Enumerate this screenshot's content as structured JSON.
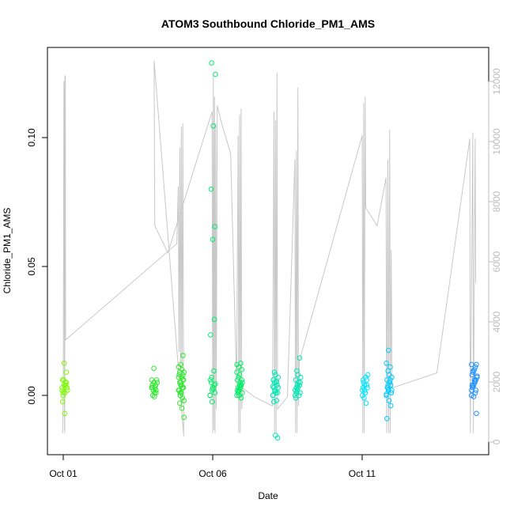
{
  "chart_data": {
    "type": "scatter",
    "title": "ATOM3 Southbound Chloride_PM1_AMS",
    "xlabel": "Date",
    "ylabel": "Chloride_PM1_AMS",
    "xlim_days": [
      0.0,
      14.0
    ],
    "ylim": [
      -0.02,
      0.13
    ],
    "x_ticks": [
      {
        "label": "Oct 01",
        "day": 0.0
      },
      {
        "label": "Oct 06",
        "day": 5.0
      },
      {
        "label": "Oct 11",
        "day": 10.0
      }
    ],
    "y_ticks": [
      {
        "label": "0.00",
        "value": 0.0
      },
      {
        "label": "0.05",
        "value": 0.05
      },
      {
        "label": "0.10",
        "value": 0.1
      }
    ],
    "right_axis": {
      "ylim": [
        0,
        13000
      ],
      "ticks": [
        {
          "label": "0",
          "value": 0
        },
        {
          "label": "2000",
          "value": 2000
        },
        {
          "label": "4000",
          "value": 4000
        },
        {
          "label": "6000",
          "value": 6000
        },
        {
          "label": "8000",
          "value": 8000
        },
        {
          "label": "10000",
          "value": 10000
        },
        {
          "label": "12000",
          "value": 12000
        }
      ]
    },
    "grid": false,
    "colors": {
      "line": "#c8c8c8",
      "right_axis": "#bdbdbd",
      "point_groups": [
        "#7cfc00",
        "#2ee82e",
        "#00ee66",
        "#00e8b4",
        "#00e5ff",
        "#00ccff",
        "#1e90ff"
      ]
    },
    "clusters": [
      {
        "day": 0.05,
        "color_index": 0,
        "values": [
          0.002,
          0.004,
          0.005,
          0.006,
          0.001,
          0.003,
          0.0,
          0.005,
          0.002,
          0.006,
          0.004,
          0.003,
          0.0125,
          0.009,
          -0.0025,
          -0.007,
          0.003,
          0.001
        ]
      },
      {
        "day": 3.05,
        "color_index": 1,
        "values": [
          0.003,
          0.005,
          0.002,
          0.004,
          0.001,
          0.006,
          0.0,
          0.003,
          0.005,
          0.002,
          0.004,
          0.006,
          0.0105,
          0.001,
          0.003,
          -0.0005
        ]
      },
      {
        "day": 3.95,
        "color_index": 1,
        "values": [
          0.002,
          0.004,
          0.006,
          0.008,
          0.001,
          0.003,
          0.005,
          0.007,
          0.009,
          0.0,
          -0.001,
          0.011,
          0.012,
          0.0155,
          0.002,
          0.004,
          0.006,
          -0.003,
          -0.005,
          -0.0085,
          0.001,
          0.003,
          0.007,
          0.005,
          0.008,
          0.002,
          0.004,
          0.006,
          0.009,
          0.01,
          -0.002,
          0.0
        ]
      },
      {
        "day": 5.0,
        "color_index": 2,
        "values": [
          0.0,
          0.002,
          0.004,
          0.006,
          0.003,
          0.001,
          0.005,
          0.0025,
          0.0045,
          0.007,
          0.0095,
          0.0,
          -0.0025,
          0.0295,
          0.0235,
          0.0605,
          0.0655,
          0.08,
          0.1045,
          0.1245,
          0.129
        ]
      },
      {
        "day": 5.9,
        "color_index": 2,
        "values": [
          0.0,
          0.002,
          0.004,
          0.006,
          0.008,
          0.01,
          0.001,
          0.003,
          0.005,
          0.007,
          0.0125,
          0.012,
          0.0,
          -0.001,
          0.002,
          0.004,
          0.006,
          0.003,
          0.005,
          0.001,
          0.0015,
          0.0035,
          0.009,
          0.011
        ]
      },
      {
        "day": 7.1,
        "color_index": 3,
        "values": [
          0.0,
          0.002,
          0.004,
          0.006,
          0.008,
          0.001,
          0.003,
          0.005,
          0.007,
          0.009,
          -0.002,
          0.0,
          0.002,
          0.004,
          0.006,
          -0.0155,
          -0.0165,
          -0.0025,
          0.001,
          0.003,
          0.005,
          0.0055,
          0.0035,
          0.0015
        ]
      },
      {
        "day": 7.85,
        "color_index": 3,
        "values": [
          0.0,
          0.002,
          0.004,
          0.006,
          0.008,
          0.001,
          0.003,
          0.005,
          0.007,
          0.0095,
          0.0,
          0.002,
          0.004,
          0.0145,
          -0.001,
          0.003,
          0.005,
          0.001
        ]
      },
      {
        "day": 10.1,
        "color_index": 4,
        "values": [
          0.0,
          0.002,
          0.004,
          0.006,
          0.001,
          0.003,
          0.005,
          0.007,
          0.008,
          -0.001,
          -0.003,
          0.002,
          0.004,
          0.006,
          0.003,
          0.001
        ]
      },
      {
        "day": 10.9,
        "color_index": 5,
        "values": [
          0.0,
          0.002,
          0.004,
          0.006,
          0.008,
          0.001,
          0.003,
          0.005,
          0.007,
          0.0095,
          0.011,
          0.0125,
          0.0175,
          -0.004,
          -0.009,
          -0.002,
          0.001,
          0.003,
          0.005,
          0.002,
          0.004,
          0.006,
          0.0005,
          0.0025
        ]
      },
      {
        "day": 13.75,
        "color_index": 6,
        "values": [
          0.002,
          0.004,
          0.006,
          0.008,
          0.01,
          0.012,
          0.003,
          0.005,
          0.007,
          0.009,
          0.001,
          0.0,
          -0.0005,
          0.002,
          0.004,
          0.006,
          -0.007,
          0.0035,
          0.0055,
          0.0075,
          0.0095,
          0.011,
          0.012
        ]
      }
    ],
    "gray_series": [
      {
        "day": -0.02,
        "v": 300
      },
      {
        "day": 0.0,
        "v": 1500
      },
      {
        "day": 0.02,
        "v": 12000
      },
      {
        "day": 0.04,
        "v": 500
      },
      {
        "day": 0.05,
        "v": 300
      },
      {
        "day": 0.05,
        "v": 12100
      },
      {
        "day": 0.07,
        "v": 12200
      },
      {
        "day": 0.08,
        "v": 3400
      },
      {
        "day": 3.8,
        "v": 6600
      },
      {
        "day": 3.85,
        "v": 8500
      },
      {
        "day": 3.87,
        "v": 3000
      },
      {
        "day": 3.9,
        "v": 9800
      },
      {
        "day": 3.92,
        "v": 2400
      },
      {
        "day": 3.95,
        "v": 10500
      },
      {
        "day": 3.97,
        "v": 1400
      },
      {
        "day": 4.0,
        "v": 10600
      },
      {
        "day": 4.03,
        "v": 200
      },
      {
        "day": 3.04,
        "v": 12700
      },
      {
        "day": 3.06,
        "v": 7200
      },
      {
        "day": 3.5,
        "v": 6300
      },
      {
        "day": 4.98,
        "v": 11000
      },
      {
        "day": 5.0,
        "v": 300
      },
      {
        "day": 5.02,
        "v": 12200
      },
      {
        "day": 5.04,
        "v": 400
      },
      {
        "day": 5.06,
        "v": 11500
      },
      {
        "day": 5.08,
        "v": 300
      },
      {
        "day": 5.1,
        "v": 10600
      },
      {
        "day": 5.12,
        "v": 1100
      },
      {
        "day": 5.15,
        "v": 11200
      },
      {
        "day": 5.3,
        "v": 10600
      },
      {
        "day": 5.6,
        "v": 9600
      },
      {
        "day": 5.8,
        "v": 1900
      },
      {
        "day": 5.85,
        "v": 10200
      },
      {
        "day": 5.87,
        "v": 300
      },
      {
        "day": 5.9,
        "v": 10900
      },
      {
        "day": 5.92,
        "v": 300
      },
      {
        "day": 5.95,
        "v": 11100
      },
      {
        "day": 5.97,
        "v": 1100
      },
      {
        "day": 6.0,
        "v": 1800
      },
      {
        "day": 6.4,
        "v": 1500
      },
      {
        "day": 7.0,
        "v": 1200
      },
      {
        "day": 7.05,
        "v": 11000
      },
      {
        "day": 7.07,
        "v": 300
      },
      {
        "day": 7.1,
        "v": 10700
      },
      {
        "day": 7.12,
        "v": 300
      },
      {
        "day": 7.15,
        "v": 12300
      },
      {
        "day": 7.17,
        "v": 1100
      },
      {
        "day": 7.5,
        "v": 1500
      },
      {
        "day": 7.75,
        "v": 9400
      },
      {
        "day": 7.77,
        "v": 300
      },
      {
        "day": 7.8,
        "v": 9700
      },
      {
        "day": 7.82,
        "v": 300
      },
      {
        "day": 7.85,
        "v": 11800
      },
      {
        "day": 7.87,
        "v": 1200
      },
      {
        "day": 7.9,
        "v": 2700
      },
      {
        "day": 10.0,
        "v": 10200
      },
      {
        "day": 10.02,
        "v": 300
      },
      {
        "day": 10.05,
        "v": 11300
      },
      {
        "day": 10.07,
        "v": 300
      },
      {
        "day": 10.1,
        "v": 11500
      },
      {
        "day": 10.12,
        "v": 7800
      },
      {
        "day": 10.5,
        "v": 7200
      },
      {
        "day": 10.8,
        "v": 8800
      },
      {
        "day": 10.82,
        "v": 300
      },
      {
        "day": 10.86,
        "v": 9400
      },
      {
        "day": 10.88,
        "v": 300
      },
      {
        "day": 10.92,
        "v": 10400
      },
      {
        "day": 10.94,
        "v": 300
      },
      {
        "day": 10.97,
        "v": 6400
      },
      {
        "day": 11.0,
        "v": 1800
      },
      {
        "day": 12.5,
        "v": 2300
      },
      {
        "day": 13.6,
        "v": 10100
      },
      {
        "day": 13.62,
        "v": 300
      },
      {
        "day": 13.7,
        "v": 10300
      },
      {
        "day": 13.72,
        "v": 300
      },
      {
        "day": 13.78,
        "v": 10100
      },
      {
        "day": 13.8,
        "v": 5300
      }
    ]
  }
}
